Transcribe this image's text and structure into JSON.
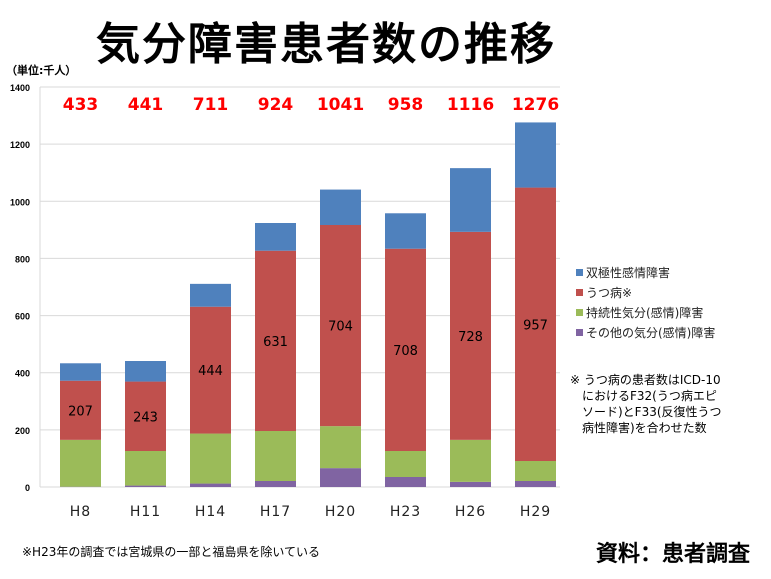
{
  "title": "気分障害患者数の推移",
  "unit_label": "（単位:千人）",
  "colors": {
    "bipolar": "#4F81BD",
    "depression": "#C0504D",
    "persistent": "#9BBB59",
    "other": "#8064A2",
    "total_label": "#FF0000",
    "grid": "#D9D9D9"
  },
  "chart_data": {
    "type": "bar",
    "stacked": true,
    "title": "気分障害患者数の推移",
    "xlabel": "",
    "ylabel": "（単位:千人）",
    "ylim": [
      0,
      1400
    ],
    "yticks": [
      0,
      200,
      400,
      600,
      800,
      1000,
      1200,
      1400
    ],
    "grid": true,
    "legend_position": "right",
    "categories": [
      "H8",
      "H11",
      "H14",
      "H17",
      "H20",
      "H23",
      "H26",
      "H29"
    ],
    "totals": [
      433,
      441,
      711,
      924,
      1041,
      958,
      1116,
      1276
    ],
    "series": [
      {
        "name": "その他の気分(感情)障害",
        "key": "other",
        "values": [
          1,
          5,
          12,
          21,
          66,
          35,
          18,
          21
        ]
      },
      {
        "name": "持続性気分(感情)障害",
        "key": "persistent",
        "values": [
          164,
          121,
          175,
          175,
          147,
          91,
          147,
          70
        ]
      },
      {
        "name": "うつ病※",
        "key": "depression",
        "values": [
          207,
          243,
          444,
          631,
          704,
          708,
          728,
          957
        ],
        "labeled": true
      },
      {
        "name": "双極性感情障害",
        "key": "bipolar",
        "values": [
          61,
          72,
          80,
          97,
          124,
          124,
          223,
          228
        ]
      }
    ]
  },
  "legend": [
    {
      "label": "双極性感情障害",
      "key": "bipolar"
    },
    {
      "label": "うつ病※",
      "key": "depression"
    },
    {
      "label": "持続性気分(感情)障害",
      "key": "persistent"
    },
    {
      "label": "その他の気分(感情)障害",
      "key": "other"
    }
  ],
  "note_lines": [
    "※ うつ病の患者数はICD-10",
    "におけるF32(うつ病エピ",
    "ソード)とF33(反復性うつ",
    "病性障害)を合わせた数"
  ],
  "footnote": "※H23年の調査では宮城県の一部と福島県を除いている",
  "source": "資料：患者調査"
}
